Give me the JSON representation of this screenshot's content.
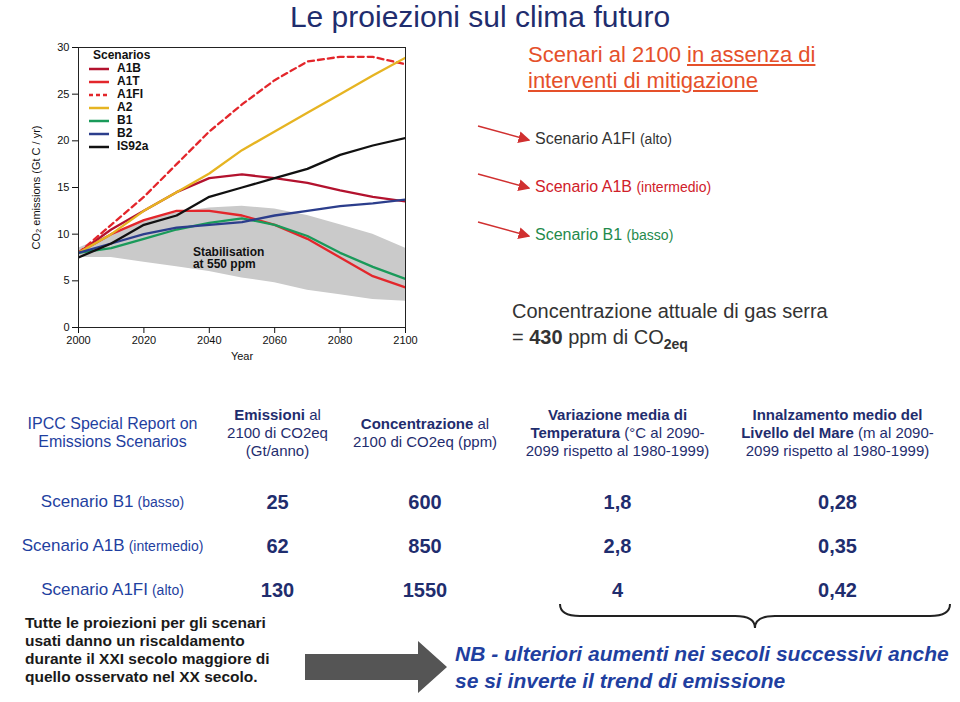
{
  "chart_data": {
    "type": "line",
    "xlabel": "Year",
    "ylabel": "CO₂ emissions (Gt C / yr)",
    "legend_title": "Scenarios",
    "legend": "top-left",
    "x": [
      2000,
      2010,
      2020,
      2030,
      2040,
      2050,
      2060,
      2070,
      2080,
      2090,
      2100
    ],
    "xlim": [
      2000,
      2100
    ],
    "xticks": [
      2000,
      2020,
      2040,
      2060,
      2080,
      2100
    ],
    "ylim": [
      0,
      30
    ],
    "yticks": [
      0,
      5,
      10,
      15,
      20,
      25,
      30
    ],
    "series": [
      {
        "name": "A1B",
        "color": "#b3122e",
        "line_style": "solid",
        "values": [
          8,
          10.5,
          12.5,
          14.5,
          16,
          16.4,
          16,
          15.5,
          14.7,
          14,
          13.5
        ]
      },
      {
        "name": "A1T",
        "color": "#e3262b",
        "line_style": "solid",
        "values": [
          8,
          10,
          11.5,
          12.5,
          12.5,
          12,
          11,
          9.5,
          7.5,
          5.5,
          4.3
        ]
      },
      {
        "name": "A1FI",
        "color": "#e3262b",
        "line_style": "dashed",
        "values": [
          8,
          11,
          14,
          17.5,
          21,
          23.9,
          26.5,
          28.5,
          29,
          29,
          28.2
        ]
      },
      {
        "name": "A2",
        "color": "#e6b422",
        "line_style": "solid",
        "values": [
          8,
          10,
          12.5,
          14.5,
          16.5,
          19,
          21,
          23,
          25,
          27,
          28.9
        ]
      },
      {
        "name": "B1",
        "color": "#1a9a5a",
        "line_style": "solid",
        "values": [
          8,
          8.5,
          9.5,
          10.5,
          11.2,
          11.7,
          11,
          9.8,
          8,
          6.5,
          5.2
        ]
      },
      {
        "name": "B2",
        "color": "#2c3e8c",
        "line_style": "solid",
        "values": [
          8,
          9,
          10,
          10.7,
          11,
          11.3,
          12,
          12.5,
          13,
          13.3,
          13.7
        ]
      },
      {
        "name": "IS92a",
        "color": "#111111",
        "line_style": "solid",
        "values": [
          7.5,
          9,
          11,
          12,
          14,
          15,
          16,
          17,
          18.5,
          19.5,
          20.3
        ]
      }
    ],
    "band": {
      "name": "Stabilisation\nat 550 ppm",
      "color": "#cacaca",
      "lower": [
        7.5,
        7.5,
        7,
        6.5,
        6,
        5.3,
        4.8,
        4,
        3.5,
        3,
        2.8
      ],
      "upper": [
        8.5,
        10,
        11.5,
        12.3,
        12.8,
        13,
        12.7,
        12,
        11,
        10,
        8.5
      ]
    }
  },
  "page": {
    "title": "Le proiezioni sul clima futuro",
    "heading": {
      "text": "Scenari al 2100",
      "underlined": "in assenza di interventi di mitigazione",
      "color": "#e5502a"
    },
    "scenario_labels": [
      {
        "name": "Scenario A1FI",
        "level": "(alto)",
        "color": "#333333"
      },
      {
        "name": "Scenario A1B",
        "level": "(intermedio)",
        "color": "#d0202a"
      },
      {
        "name": "Scenario B1",
        "level": "(basso)",
        "color": "#1f8a4c"
      }
    ],
    "concentration": {
      "text": "Concentrazione attuale di gas serra =",
      "value": 430,
      "unit": "ppm di CO",
      "subscript": "2eq"
    },
    "table": {
      "header": [
        {
          "bold": "",
          "text": "IPCC Special Report on Emissions Scenarios"
        },
        {
          "bold": "Emissioni",
          "text": "al 2100 di CO2eq (Gt/anno)"
        },
        {
          "bold": "Concentrazione",
          "text": "al 2100 di CO2eq (ppm)"
        },
        {
          "bold": "Variazione media di Temperatura",
          "text": "(°C al 2090-2099 rispetto al 1980-1999)"
        },
        {
          "bold": "Innalzamento medio del Livello del Mare",
          "text": "(m al 2090-2099 rispetto al 1980-1999)"
        }
      ],
      "rows": [
        {
          "name": "Scenario B1",
          "level": "(basso)",
          "cells": [
            "25",
            "600",
            "1,8",
            "0,28"
          ]
        },
        {
          "name": "Scenario A1B",
          "level": "(intermedio)",
          "cells": [
            "62",
            "850",
            "2,8",
            "0,35"
          ]
        },
        {
          "name": "Scenario A1FI",
          "level": "(alto)",
          "cells": [
            "130",
            "1550",
            "4",
            "0,42"
          ]
        }
      ]
    },
    "notes": {
      "left": "Tutte le proiezioni per gli scenari usati danno un riscaldamento durante il XXI secolo maggiore di quello osservato nel XX secolo.",
      "nb": "NB - ulteriori aumenti nei secoli successivi anche se si inverte il trend di emissione"
    }
  }
}
